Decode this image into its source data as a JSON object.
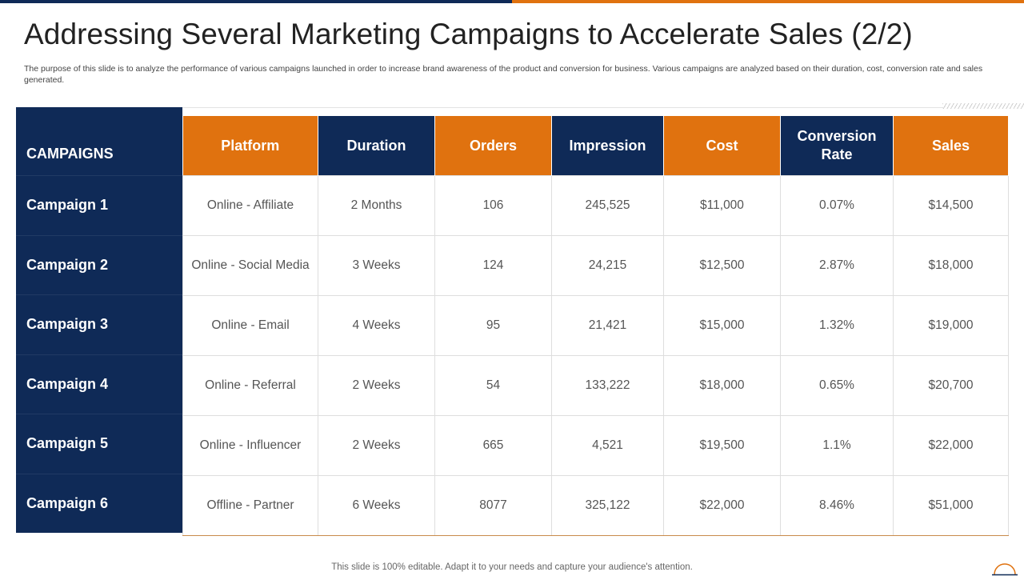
{
  "colors": {
    "navy": "#0f2a57",
    "orange": "#e0720f"
  },
  "title": "Addressing Several Marketing Campaigns to Accelerate Sales (2/2)",
  "description": "The purpose of this slide is to analyze the performance of various campaigns launched in order to increase brand awareness of the product and conversion for business. Various campaigns are analyzed based on their duration, cost, conversion rate and sales generated.",
  "table": {
    "corner_label": "CAMPAIGNS",
    "headers": [
      "Platform",
      "Duration",
      "Orders",
      "Impression",
      "Cost",
      "Conversion Rate",
      "Sales"
    ],
    "header_colors": [
      "orange",
      "navy",
      "orange",
      "navy",
      "orange",
      "navy",
      "orange"
    ],
    "rows": [
      {
        "campaign": "Campaign 1",
        "cells": [
          "Online - Affiliate",
          "2 Months",
          "106",
          "245,525",
          "$11,000",
          "0.07%",
          "$14,500"
        ]
      },
      {
        "campaign": "Campaign 2",
        "cells": [
          "Online - Social Media",
          "3 Weeks",
          "124",
          "24,215",
          "$12,500",
          "2.87%",
          "$18,000"
        ]
      },
      {
        "campaign": "Campaign 3",
        "cells": [
          "Online - Email",
          "4 Weeks",
          "95",
          "21,421",
          "$15,000",
          "1.32%",
          "$19,000"
        ]
      },
      {
        "campaign": "Campaign 4",
        "cells": [
          "Online - Referral",
          "2 Weeks",
          "54",
          "133,222",
          "$18,000",
          "0.65%",
          "$20,700"
        ]
      },
      {
        "campaign": "Campaign 5",
        "cells": [
          "Online - Influencer",
          "2 Weeks",
          "665",
          "4,521",
          "$19,500",
          "1.1%",
          "$22,000"
        ]
      },
      {
        "campaign": "Campaign 6",
        "cells": [
          "Offline - Partner",
          "6 Weeks",
          "8077",
          "325,122",
          "$22,000",
          "8.46%",
          "$51,000"
        ]
      }
    ]
  },
  "footer": "This slide is 100% editable. Adapt it to your needs and capture your audience's attention.",
  "icons": {
    "corner": "circle-outline-icon"
  }
}
